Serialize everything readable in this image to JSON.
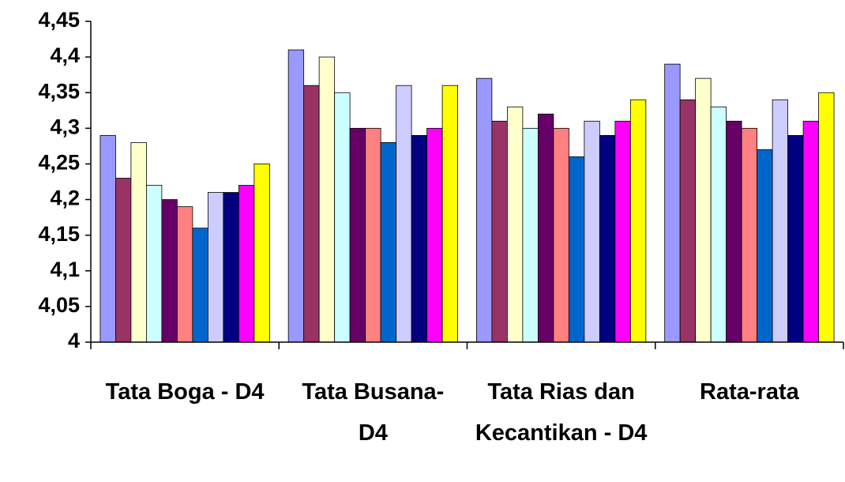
{
  "chart_data": {
    "type": "bar",
    "categories": [
      "Tata Boga - D4",
      "Tata Busana- D4",
      "Tata Rias dan Kecantikan - D4",
      "Rata-rata"
    ],
    "series": [
      {
        "color": "#9999ff",
        "values": [
          4.29,
          4.41,
          4.37,
          4.39
        ]
      },
      {
        "color": "#993366",
        "values": [
          4.23,
          4.36,
          4.31,
          4.34
        ]
      },
      {
        "color": "#ffffcc",
        "values": [
          4.28,
          4.4,
          4.33,
          4.37
        ]
      },
      {
        "color": "#ccffff",
        "values": [
          4.22,
          4.35,
          4.3,
          4.33
        ]
      },
      {
        "color": "#660066",
        "values": [
          4.2,
          4.3,
          4.32,
          4.31
        ]
      },
      {
        "color": "#ff8080",
        "values": [
          4.19,
          4.3,
          4.3,
          4.3
        ]
      },
      {
        "color": "#0066cc",
        "values": [
          4.16,
          4.28,
          4.26,
          4.27
        ]
      },
      {
        "color": "#ccccff",
        "values": [
          4.21,
          4.36,
          4.31,
          4.34
        ]
      },
      {
        "color": "#000080",
        "values": [
          4.21,
          4.29,
          4.29,
          4.29
        ]
      },
      {
        "color": "#ff00ff",
        "values": [
          4.22,
          4.3,
          4.31,
          4.31
        ]
      },
      {
        "color": "#ffff00",
        "values": [
          4.25,
          4.36,
          4.34,
          4.35
        ]
      }
    ],
    "ylim": [
      4,
      4.45
    ],
    "yticks": [
      4,
      {
        "value": 4.05,
        "label": "4,05"
      },
      {
        "value": 4.1,
        "label": "4,1"
      },
      {
        "value": 4.15,
        "label": "4,15"
      },
      {
        "value": 4.2,
        "label": "4,2"
      },
      {
        "value": 4.25,
        "label": "4,25"
      },
      {
        "value": 4.3,
        "label": "4,3"
      },
      {
        "value": 4.35,
        "label": "4,35"
      },
      {
        "value": 4.4,
        "label": "4,4"
      },
      {
        "value": 4.45,
        "label": "4,45"
      }
    ],
    "grid": false
  }
}
